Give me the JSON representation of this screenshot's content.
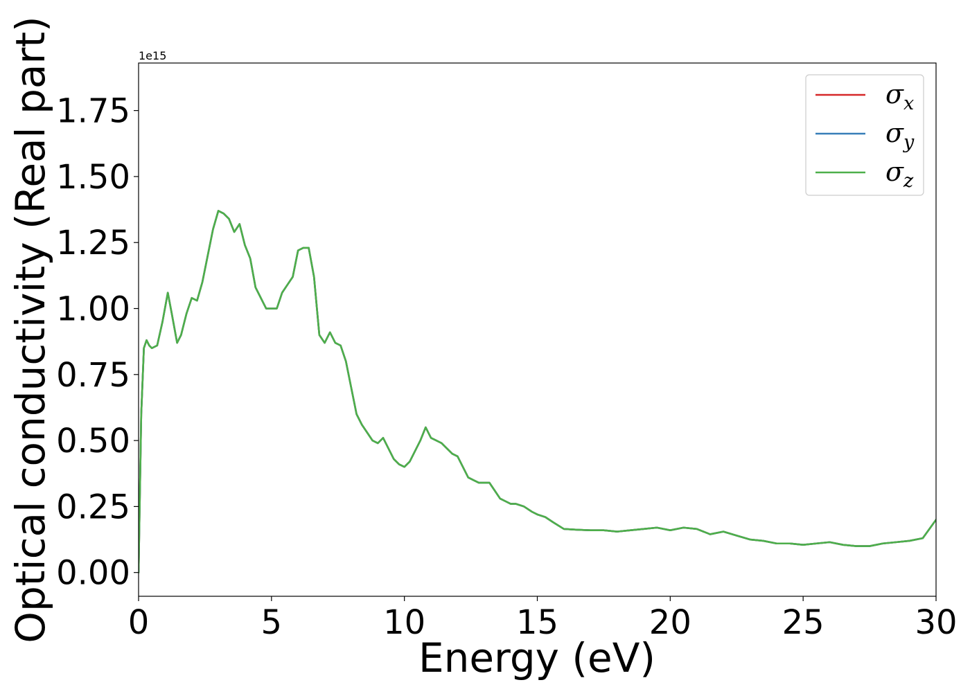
{
  "chart_data": {
    "type": "line",
    "title": "",
    "xlabel": "Energy (eV)",
    "ylabel": "Optical conductivity (Real part)",
    "y_offset_text": "1e15",
    "xlim": [
      0,
      30
    ],
    "ylim": [
      -0.09,
      1.93
    ],
    "y_scale_factor": 1000000000000000.0,
    "x_ticks": [
      0,
      5,
      10,
      15,
      20,
      25,
      30
    ],
    "x_tick_labels": [
      "0",
      "5",
      "10",
      "15",
      "20",
      "25",
      "30"
    ],
    "y_ticks": [
      0.0,
      0.25,
      0.5,
      0.75,
      1.0,
      1.25,
      1.5,
      1.75
    ],
    "y_tick_labels": [
      "0.00",
      "0.25",
      "0.50",
      "0.75",
      "1.00",
      "1.25",
      "1.50",
      "1.75"
    ],
    "grid": false,
    "legend_position": "top-right",
    "x": [
      0,
      0.1,
      0.2,
      0.3,
      0.4,
      0.5,
      0.7,
      0.9,
      1.1,
      1.25,
      1.45,
      1.6,
      1.8,
      2.0,
      2.2,
      2.4,
      2.6,
      2.8,
      3.0,
      3.2,
      3.4,
      3.6,
      3.8,
      4.0,
      4.2,
      4.4,
      4.6,
      4.8,
      5.0,
      5.2,
      5.4,
      5.6,
      5.8,
      6.0,
      6.2,
      6.4,
      6.6,
      6.8,
      7.0,
      7.2,
      7.4,
      7.6,
      7.8,
      8.0,
      8.2,
      8.4,
      8.6,
      8.8,
      9.0,
      9.2,
      9.4,
      9.6,
      9.8,
      10.0,
      10.2,
      10.4,
      10.6,
      10.8,
      11.0,
      11.2,
      11.4,
      11.6,
      11.8,
      12.0,
      12.2,
      12.4,
      12.6,
      12.8,
      13.0,
      13.2,
      13.4,
      13.6,
      13.8,
      14.0,
      14.2,
      14.5,
      14.8,
      15.0,
      15.3,
      15.6,
      16.0,
      16.5,
      17.0,
      17.5,
      18.0,
      18.5,
      19.0,
      19.5,
      20.0,
      20.5,
      21.0,
      21.5,
      22.0,
      22.5,
      23.0,
      23.5,
      24.0,
      24.5,
      25.0,
      25.5,
      26.0,
      26.5,
      27.0,
      27.5,
      28.0,
      28.5,
      29.0,
      29.5,
      30.0
    ],
    "series": [
      {
        "name": "σ_x",
        "label_base": "σ",
        "label_sub": "x",
        "color": "#d62728",
        "values": [
          0.0,
          0.6,
          0.85,
          0.88,
          0.86,
          0.85,
          0.86,
          0.95,
          1.06,
          0.98,
          0.87,
          0.9,
          0.98,
          1.04,
          1.03,
          1.1,
          1.2,
          1.3,
          1.37,
          1.36,
          1.34,
          1.29,
          1.32,
          1.24,
          1.19,
          1.08,
          1.04,
          1.0,
          1.0,
          1.0,
          1.06,
          1.09,
          1.12,
          1.22,
          1.23,
          1.23,
          1.12,
          0.9,
          0.87,
          0.91,
          0.87,
          0.86,
          0.8,
          0.7,
          0.6,
          0.56,
          0.53,
          0.5,
          0.49,
          0.51,
          0.47,
          0.43,
          0.41,
          0.4,
          0.42,
          0.46,
          0.5,
          0.55,
          0.51,
          0.5,
          0.49,
          0.47,
          0.45,
          0.44,
          0.4,
          0.36,
          0.35,
          0.34,
          0.34,
          0.34,
          0.31,
          0.28,
          0.27,
          0.26,
          0.26,
          0.25,
          0.23,
          0.22,
          0.21,
          0.19,
          0.165,
          0.162,
          0.16,
          0.16,
          0.155,
          0.16,
          0.165,
          0.17,
          0.16,
          0.17,
          0.165,
          0.145,
          0.155,
          0.14,
          0.125,
          0.12,
          0.11,
          0.11,
          0.105,
          0.11,
          0.115,
          0.105,
          0.1,
          0.1,
          0.11,
          0.115,
          0.12,
          0.13,
          0.2
        ]
      },
      {
        "name": "σ_y",
        "label_base": "σ",
        "label_sub": "y",
        "color": "#377eb8",
        "values": [
          0.0,
          0.6,
          0.85,
          0.88,
          0.86,
          0.85,
          0.86,
          0.95,
          1.06,
          0.98,
          0.87,
          0.9,
          0.98,
          1.04,
          1.03,
          1.1,
          1.2,
          1.3,
          1.37,
          1.36,
          1.34,
          1.29,
          1.32,
          1.24,
          1.19,
          1.08,
          1.04,
          1.0,
          1.0,
          1.0,
          1.06,
          1.09,
          1.12,
          1.22,
          1.23,
          1.23,
          1.12,
          0.9,
          0.87,
          0.91,
          0.87,
          0.86,
          0.8,
          0.7,
          0.6,
          0.56,
          0.53,
          0.5,
          0.49,
          0.51,
          0.47,
          0.43,
          0.41,
          0.4,
          0.42,
          0.46,
          0.5,
          0.55,
          0.51,
          0.5,
          0.49,
          0.47,
          0.45,
          0.44,
          0.4,
          0.36,
          0.35,
          0.34,
          0.34,
          0.34,
          0.31,
          0.28,
          0.27,
          0.26,
          0.26,
          0.25,
          0.23,
          0.22,
          0.21,
          0.19,
          0.165,
          0.162,
          0.16,
          0.16,
          0.155,
          0.16,
          0.165,
          0.17,
          0.16,
          0.17,
          0.165,
          0.145,
          0.155,
          0.14,
          0.125,
          0.12,
          0.11,
          0.11,
          0.105,
          0.11,
          0.115,
          0.105,
          0.1,
          0.1,
          0.11,
          0.115,
          0.12,
          0.13,
          0.2
        ]
      },
      {
        "name": "σ_z",
        "label_base": "σ",
        "label_sub": "z",
        "color": "#4daf4a",
        "values": [
          0.0,
          0.6,
          0.85,
          0.88,
          0.86,
          0.85,
          0.86,
          0.95,
          1.06,
          0.98,
          0.87,
          0.9,
          0.98,
          1.04,
          1.03,
          1.1,
          1.2,
          1.3,
          1.37,
          1.36,
          1.34,
          1.29,
          1.32,
          1.24,
          1.19,
          1.08,
          1.04,
          1.0,
          1.0,
          1.0,
          1.06,
          1.09,
          1.12,
          1.22,
          1.23,
          1.23,
          1.12,
          0.9,
          0.87,
          0.91,
          0.87,
          0.86,
          0.8,
          0.7,
          0.6,
          0.56,
          0.53,
          0.5,
          0.49,
          0.51,
          0.47,
          0.43,
          0.41,
          0.4,
          0.42,
          0.46,
          0.5,
          0.55,
          0.51,
          0.5,
          0.49,
          0.47,
          0.45,
          0.44,
          0.4,
          0.36,
          0.35,
          0.34,
          0.34,
          0.34,
          0.31,
          0.28,
          0.27,
          0.26,
          0.26,
          0.25,
          0.23,
          0.22,
          0.21,
          0.19,
          0.165,
          0.162,
          0.16,
          0.16,
          0.155,
          0.16,
          0.165,
          0.17,
          0.16,
          0.17,
          0.165,
          0.145,
          0.155,
          0.14,
          0.125,
          0.12,
          0.11,
          0.11,
          0.105,
          0.11,
          0.115,
          0.105,
          0.1,
          0.1,
          0.11,
          0.115,
          0.12,
          0.13,
          0.2
        ]
      }
    ]
  }
}
